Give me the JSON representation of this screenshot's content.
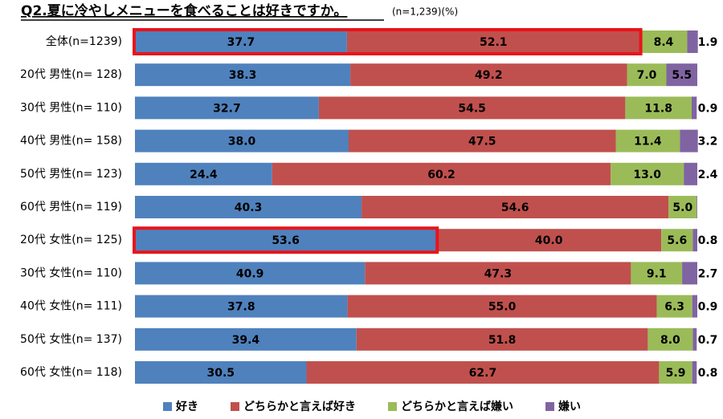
{
  "chart_data": {
    "type": "stacked-bar-horizontal",
    "title": "Q2.夏に冷やしメニューを食べることは好きですか。",
    "subtitle": "(n=1,239)(%)",
    "categories": [
      "全体(n=1239)",
      "20代 男性(n= 128)",
      "30代 男性(n= 110)",
      "40代 男性(n= 158)",
      "50代 男性(n= 123)",
      "60代 男性(n= 119)",
      "20代 女性(n= 125)",
      "30代 女性(n= 110)",
      "40代 女性(n= 111)",
      "50代 女性(n= 137)",
      "60代 女性(n= 118)"
    ],
    "xlim": [
      0,
      100
    ],
    "series": [
      {
        "name": "好き",
        "color": "#4f81bd",
        "values": [
          37.7,
          38.3,
          32.7,
          38.0,
          24.4,
          40.3,
          53.6,
          40.9,
          37.8,
          39.4,
          30.5
        ],
        "value_labels": [
          "37.7",
          "38.3",
          "32.7",
          "38.0",
          "24.4",
          "40.3",
          "53.6",
          "40.9",
          "37.8",
          "39.4",
          "30.5"
        ]
      },
      {
        "name": "どちらかと言えば好き",
        "color": "#c0504d",
        "values": [
          52.1,
          49.2,
          54.5,
          47.5,
          60.2,
          54.6,
          40.0,
          47.3,
          55.0,
          51.8,
          62.7
        ],
        "value_labels": [
          "52.1",
          "49.2",
          "54.5",
          "47.5",
          "60.2",
          "54.6",
          "40.0",
          "47.3",
          "55.0",
          "51.8",
          "62.7"
        ]
      },
      {
        "name": "どちらかと言えば嫌い",
        "color": "#9bbb59",
        "values": [
          8.4,
          7.0,
          11.8,
          11.4,
          13.0,
          5.0,
          5.6,
          9.1,
          6.3,
          8.0,
          5.9
        ],
        "value_labels": [
          "8.4",
          "7.0",
          "11.8",
          "11.4",
          "13.0",
          "5.0",
          "5.6",
          "9.1",
          "6.3",
          "8.0",
          "5.9"
        ]
      },
      {
        "name": "嫌い",
        "color": "#8064a2",
        "values": [
          1.9,
          5.5,
          0.9,
          3.2,
          2.4,
          0.1,
          0.8,
          2.7,
          0.9,
          0.7,
          0.8
        ],
        "value_labels": [
          "1.9",
          "5.5",
          "0.9",
          "3.2",
          "2.4",
          null,
          "0.8",
          "2.7",
          "0.9",
          "0.7",
          "0.8"
        ]
      }
    ],
    "highlights": [
      {
        "row": 0,
        "through_series": 1
      },
      {
        "row": 6,
        "through_series": 0
      }
    ],
    "highlight_color": "#e8141b"
  }
}
